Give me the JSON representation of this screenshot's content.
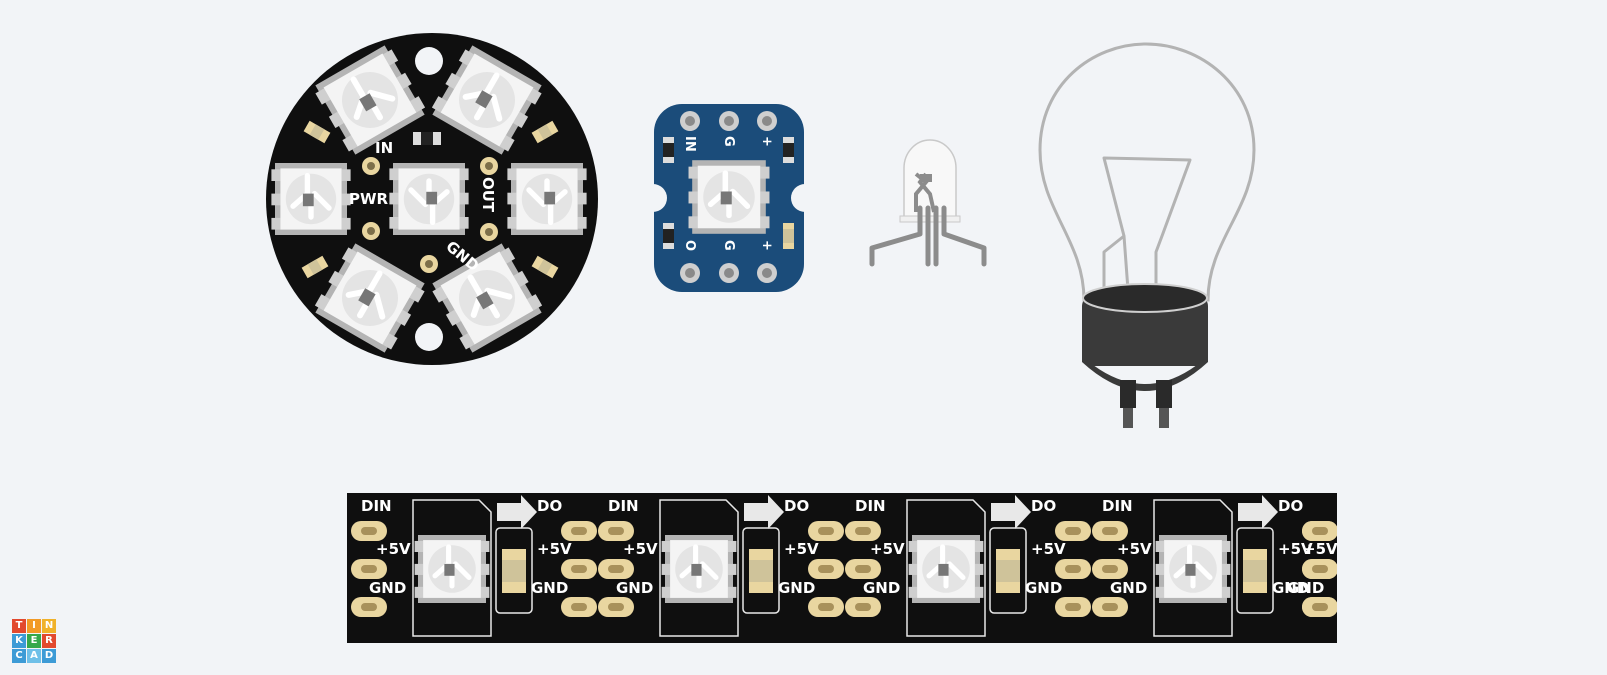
{
  "jewel": {
    "label_in": "IN",
    "label_pwr": "PWR",
    "label_out": "OUT",
    "label_gnd": "GND"
  },
  "breakout": {
    "top_labels": [
      "IN",
      "G",
      "+"
    ],
    "bottom_labels": [
      "O",
      "G",
      "+"
    ]
  },
  "strip": {
    "segments": [
      {
        "din": "DIN",
        "v5": "+5V",
        "gnd": "GND",
        "do": "DO"
      },
      {
        "din": "DIN",
        "v5": "+5V",
        "gnd": "GND",
        "do": "DO"
      },
      {
        "din": "DIN",
        "v5": "+5V",
        "gnd": "GND",
        "do": "DO"
      },
      {
        "din": "DIN",
        "v5": "+5V",
        "gnd": "GND",
        "do": "DO"
      }
    ],
    "end_labels": {
      "v5": "+5V",
      "gnd": "GND"
    }
  },
  "logo": {
    "letters": [
      "T",
      "I",
      "N",
      "K",
      "E",
      "R",
      "C",
      "A",
      "D"
    ],
    "colors": [
      "#e2492e",
      "#f29a26",
      "#f0b22a",
      "#3d9bd6",
      "#35a84a",
      "#e2492e",
      "#3d9bd6",
      "#6fc0e8",
      "#3d9bd6"
    ]
  },
  "colors": {
    "background": "#f2f4f7",
    "pcb_black": "#0f0f0f",
    "pcb_blue": "#1b4c7a",
    "pad_gold": "#e9d6a0",
    "led_white": "#f1f1f1",
    "bulb_base": "#3a3a3a"
  }
}
